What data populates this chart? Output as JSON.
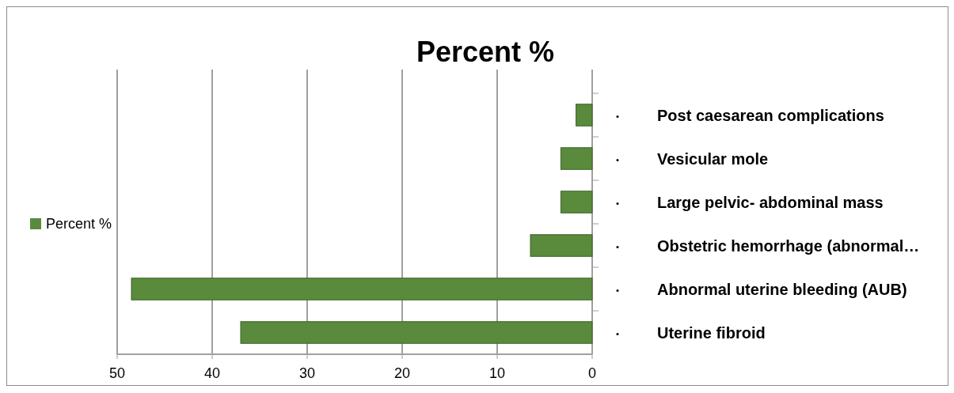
{
  "chart_data": {
    "type": "bar",
    "orientation": "horizontal",
    "title": "Percent %",
    "categories": [
      "Post caesarean complications",
      "Vesicular mole",
      "Large pelvic- abdominal mass",
      "Obstetric hemorrhage (abnormal…",
      "Abnormal uterine bleeding (AUB)",
      "Uterine fibroid"
    ],
    "series": [
      {
        "name": "Percent %",
        "color": "#5a8a3c",
        "values": [
          1.7,
          3.3,
          3.3,
          6.5,
          48.5,
          37
        ]
      }
    ],
    "xlim": [
      50,
      0
    ],
    "xticks": [
      50,
      40,
      30,
      20,
      10,
      0
    ],
    "grid": "x",
    "legend": "left"
  }
}
